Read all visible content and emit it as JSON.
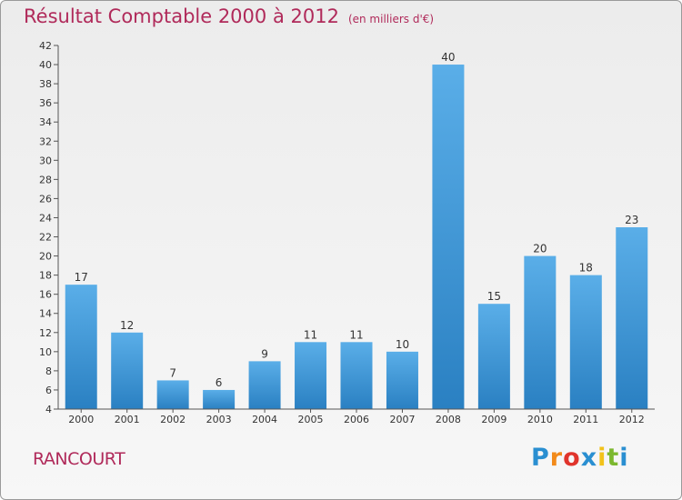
{
  "title": "Résultat Comptable 2000 à 2012",
  "subtitle": "(en milliers d'€)",
  "place": "RANCOURT",
  "brand": {
    "letters": [
      "P",
      "r",
      "o",
      "x",
      "i",
      "t",
      "i"
    ],
    "colors": [
      "#2a8fd1",
      "#f28a1a",
      "#e0342c",
      "#2a8fd1",
      "#f2c21a",
      "#7cb82f",
      "#2a8fd1"
    ]
  },
  "colors": {
    "bar_top": "#5aaee8",
    "bar_bottom": "#2a80c2",
    "title": "#b02a5a"
  },
  "chart_data": {
    "type": "bar",
    "title": "Résultat Comptable 2000 à 2012",
    "ylabel": "en milliers d'€",
    "categories": [
      "2000",
      "2001",
      "2002",
      "2003",
      "2004",
      "2005",
      "2006",
      "2007",
      "2008",
      "2009",
      "2010",
      "2011",
      "2012"
    ],
    "values": [
      17,
      12,
      7,
      6,
      9,
      11,
      11,
      10,
      40,
      15,
      20,
      18,
      23
    ],
    "ylim": [
      4,
      42
    ],
    "yticks": [
      4,
      6,
      8,
      10,
      12,
      14,
      16,
      18,
      20,
      22,
      24,
      26,
      28,
      30,
      32,
      34,
      36,
      38,
      40,
      42
    ],
    "grid": false,
    "legend": "none"
  }
}
